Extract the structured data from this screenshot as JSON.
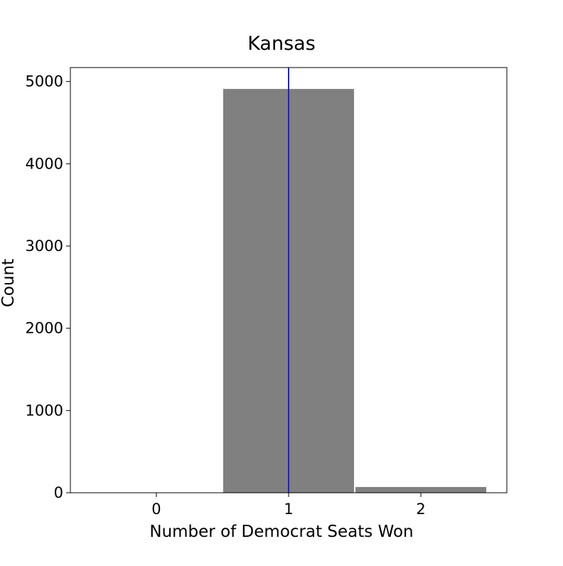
{
  "chart_data": {
    "type": "bar",
    "title": "Kansas",
    "xlabel": "Number of Democrat Seats Won",
    "ylabel": "Count",
    "categories": [
      0,
      1,
      2
    ],
    "values": [
      0,
      4910,
      70
    ],
    "xlim": [
      -0.65,
      2.65
    ],
    "ylim": [
      0,
      5170
    ],
    "xticks": [
      0,
      1,
      2
    ],
    "yticks": [
      0,
      1000,
      2000,
      3000,
      4000,
      5000
    ],
    "vertical_line": {
      "x": 1,
      "color": "#2222cc"
    },
    "bar_color": "#808080",
    "grid": false,
    "legend": "none"
  }
}
